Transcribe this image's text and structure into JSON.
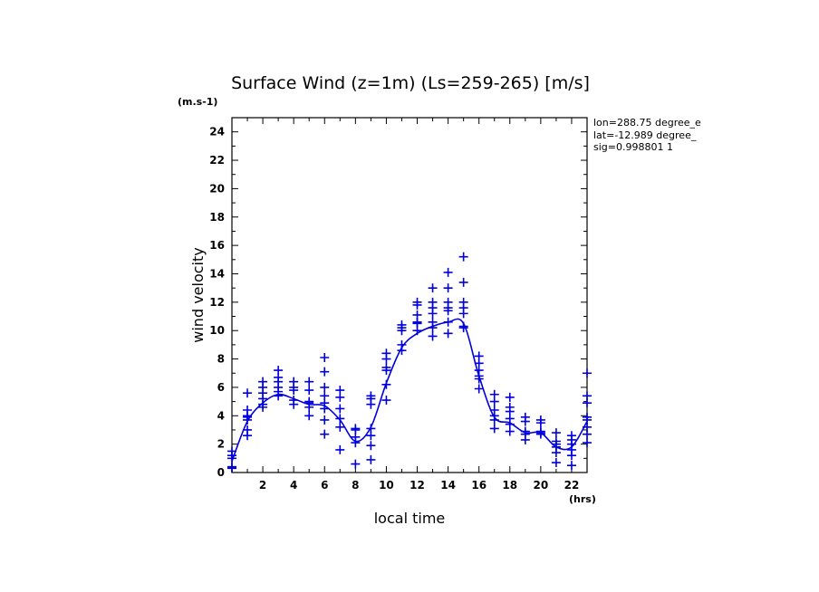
{
  "chart_data": {
    "type": "line",
    "title": "Surface Wind (z=1m) (Ls=259-265) [m/s]",
    "xlabel": "local time",
    "ylabel": "wind velocity",
    "x_unit": "(hrs)",
    "y_unit": "(m.s-1)",
    "xlim": [
      0,
      23
    ],
    "ylim": [
      0,
      25
    ],
    "x_ticks": [
      2,
      4,
      6,
      8,
      10,
      12,
      14,
      16,
      18,
      20,
      22
    ],
    "y_ticks": [
      0,
      2,
      4,
      6,
      8,
      10,
      12,
      14,
      16,
      18,
      20,
      22,
      24
    ],
    "info_lines": [
      "lon=288.75 degree_e",
      "lat=-12.989 degree_",
      "sig=0.998801 1"
    ],
    "color": "#0000dd",
    "mean_line": {
      "x": [
        0,
        1,
        2,
        3,
        4,
        5,
        6,
        7,
        8,
        9,
        10,
        11,
        12,
        13,
        14,
        15,
        16,
        17,
        18,
        19,
        20,
        21,
        22,
        23
      ],
      "y": [
        0.8,
        3.6,
        4.9,
        5.5,
        5.2,
        4.8,
        4.7,
        3.7,
        2.2,
        3.2,
        6.3,
        8.8,
        9.8,
        10.3,
        10.6,
        10.5,
        6.8,
        3.9,
        3.5,
        2.8,
        2.8,
        1.8,
        1.8,
        3.6
      ]
    },
    "samples": [
      {
        "x": 0,
        "y": [
          0.3,
          0.4,
          1.0,
          1.2,
          1.5
        ]
      },
      {
        "x": 1,
        "y": [
          2.6,
          3.0,
          3.7,
          3.9,
          4.0,
          4.4,
          5.6
        ]
      },
      {
        "x": 2,
        "y": [
          4.6,
          4.8,
          5.2,
          5.6,
          6.0,
          6.4
        ]
      },
      {
        "x": 3,
        "y": [
          5.4,
          5.7,
          6.0,
          6.4,
          6.7,
          7.2
        ]
      },
      {
        "x": 4,
        "y": [
          4.8,
          5.1,
          5.8,
          6.0,
          6.4
        ]
      },
      {
        "x": 5,
        "y": [
          4.0,
          4.6,
          4.9,
          5.0,
          5.8,
          6.4
        ]
      },
      {
        "x": 6,
        "y": [
          2.7,
          3.7,
          4.5,
          4.9,
          5.4,
          6.0,
          7.1,
          8.1
        ]
      },
      {
        "x": 7,
        "y": [
          1.6,
          3.2,
          3.8,
          4.5,
          5.3,
          5.8
        ]
      },
      {
        "x": 8,
        "y": [
          0.6,
          2.1,
          2.5,
          3.0,
          3.1
        ]
      },
      {
        "x": 9,
        "y": [
          0.9,
          1.9,
          2.6,
          3.1,
          4.8,
          5.2,
          5.4
        ]
      },
      {
        "x": 10,
        "y": [
          5.1,
          6.2,
          7.2,
          7.4,
          8.0,
          8.4
        ]
      },
      {
        "x": 11,
        "y": [
          8.6,
          9.0,
          10.0,
          10.2,
          10.4
        ]
      },
      {
        "x": 12,
        "y": [
          10.0,
          10.5,
          10.6,
          11.1,
          11.8,
          12.0
        ]
      },
      {
        "x": 13,
        "y": [
          9.6,
          10.2,
          10.6,
          11.2,
          11.6,
          12.0,
          13.0
        ]
      },
      {
        "x": 14,
        "y": [
          9.8,
          10.6,
          11.4,
          11.6,
          12.0,
          13.0,
          14.1
        ]
      },
      {
        "x": 15,
        "y": [
          10.2,
          10.3,
          11.2,
          11.6,
          12.0,
          13.4,
          15.2
        ]
      },
      {
        "x": 16,
        "y": [
          5.9,
          6.6,
          6.8,
          7.2,
          7.7,
          8.2
        ]
      },
      {
        "x": 17,
        "y": [
          3.1,
          3.7,
          4.0,
          4.4,
          5.0,
          5.5
        ]
      },
      {
        "x": 18,
        "y": [
          2.9,
          3.4,
          3.8,
          4.3,
          4.6,
          5.3
        ]
      },
      {
        "x": 19,
        "y": [
          2.3,
          2.7,
          2.9,
          3.6,
          3.9
        ]
      },
      {
        "x": 20,
        "y": [
          2.7,
          2.8,
          2.9,
          3.5,
          3.7
        ]
      },
      {
        "x": 21,
        "y": [
          0.7,
          1.4,
          1.8,
          2.0,
          2.2,
          2.8
        ]
      },
      {
        "x": 22,
        "y": [
          0.5,
          1.2,
          1.6,
          2.0,
          2.3,
          2.6
        ]
      },
      {
        "x": 23,
        "y": [
          2.1,
          2.7,
          3.2,
          3.7,
          3.9,
          4.9,
          5.4,
          7.0
        ]
      }
    ]
  }
}
